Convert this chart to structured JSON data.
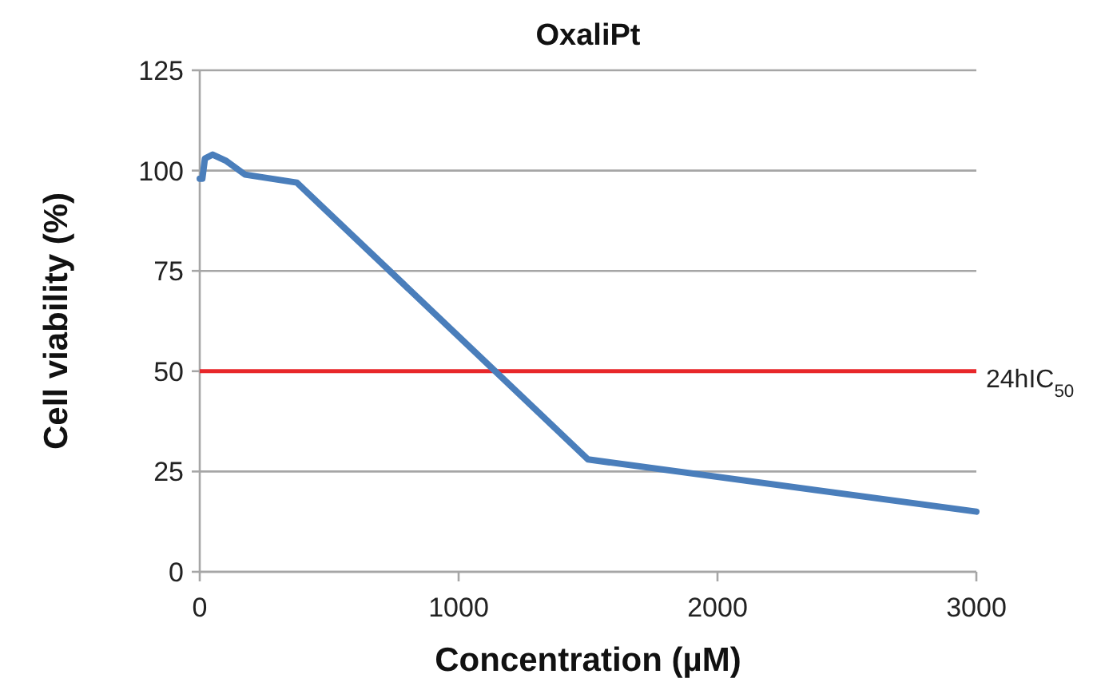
{
  "chart_data": {
    "type": "line",
    "title": "OxaliPt",
    "xlabel": "Concentration (µM)",
    "ylabel": "Cell viability (%)",
    "series": [
      {
        "color": "#4a7ebb",
        "x": [
          0,
          10,
          20,
          50,
          100,
          175,
          375,
          1500,
          3000
        ],
        "values": [
          98,
          98,
          103,
          104,
          102.5,
          99,
          97,
          28,
          15
        ]
      }
    ],
    "xlim": [
      0,
      3000
    ],
    "xticks": [
      0,
      1000,
      2000,
      3000
    ],
    "ylim": [
      0,
      125
    ],
    "yticks": [
      0,
      25,
      50,
      75,
      100,
      125
    ],
    "grid": "y",
    "marker": "none",
    "line_style": "solid",
    "ref_lines": [
      {
        "axis": "y",
        "value": 50,
        "label": "24hIC$_{50}$",
        "color": "#e8272a"
      }
    ]
  }
}
